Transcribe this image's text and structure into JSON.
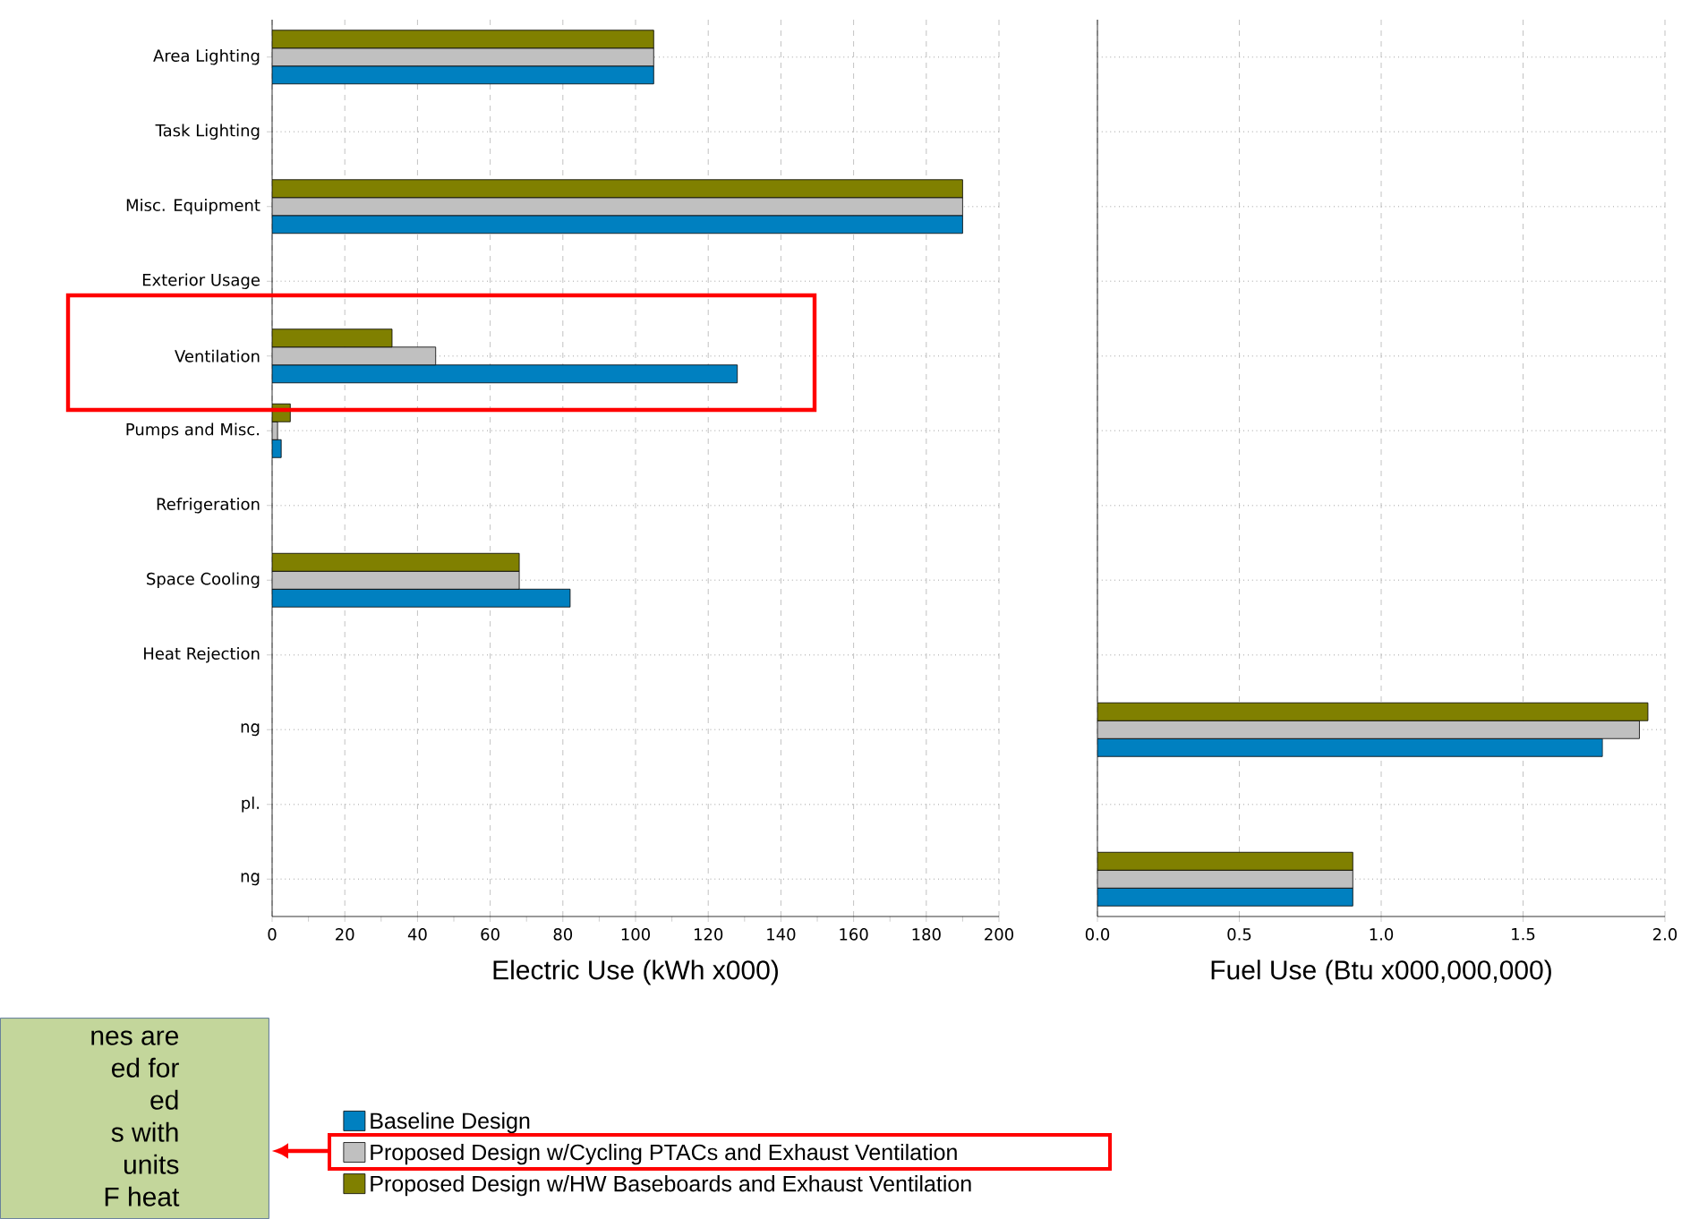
{
  "chart_data": [
    {
      "type": "bar",
      "orientation": "horizontal",
      "xlabel": "Electric Use (kWh x000)",
      "categories": [
        "Area Lighting",
        "Task Lighting",
        "Misc. Equipment",
        "Exterior Usage",
        "Ventilation",
        "Pumps and Misc.",
        "Refrigeration",
        "Space Cooling",
        "Heat Rejection",
        "ng",
        "pl.",
        "ng"
      ],
      "series": [
        {
          "name": "Baseline Design",
          "color": "#0080c0",
          "values": [
            105,
            null,
            190,
            null,
            128,
            2.5,
            null,
            82,
            null,
            null,
            null,
            null
          ]
        },
        {
          "name": "Proposed Design w/Cycling PTACs and Exhaust Ventilation",
          "color": "#c0c0c0",
          "values": [
            105,
            null,
            190,
            null,
            45,
            1.5,
            null,
            68,
            null,
            null,
            null,
            null
          ]
        },
        {
          "name": "Proposed Design w/HW Baseboards and Exhaust Ventilation",
          "color": "#808000",
          "values": [
            105,
            null,
            190,
            null,
            33,
            5,
            null,
            68,
            null,
            null,
            null,
            null
          ]
        }
      ],
      "xlim": [
        0,
        200
      ],
      "xticks": [
        0,
        20,
        40,
        60,
        80,
        100,
        120,
        140,
        160,
        180,
        200
      ],
      "grid": true,
      "legend": "bottom",
      "annotations": [
        "nes are",
        "ed for",
        "ed",
        "s with",
        "units",
        "F heat"
      ]
    },
    {
      "type": "bar",
      "orientation": "horizontal",
      "xlabel": "Fuel Use (Btu x000,000,000)",
      "categories": [
        null,
        null,
        null,
        null,
        null,
        null,
        null,
        null,
        null,
        null,
        null,
        null
      ],
      "series": [
        {
          "color": "#0080c0",
          "values": [
            null,
            null,
            null,
            null,
            null,
            null,
            null,
            null,
            null,
            1.78,
            null,
            0.9
          ]
        },
        {
          "color": "#c0c0c0",
          "values": [
            null,
            null,
            null,
            null,
            null,
            null,
            null,
            null,
            null,
            1.91,
            null,
            0.9
          ]
        },
        {
          "color": "#808000",
          "values": [
            null,
            null,
            null,
            null,
            null,
            null,
            null,
            null,
            null,
            1.94,
            null,
            0.9
          ]
        }
      ],
      "xlim": [
        0,
        2
      ],
      "xticks": [
        {
          "value": 0,
          "label": "0.0"
        },
        {
          "value": 0.5,
          "label": "0.5"
        },
        {
          "value": 1,
          "label": "1.0"
        },
        {
          "value": 1.5,
          "label": "1.5"
        },
        {
          "value": 2,
          "label": "2.0"
        }
      ],
      "grid": true,
      "tick_labels": "x"
    }
  ]
}
